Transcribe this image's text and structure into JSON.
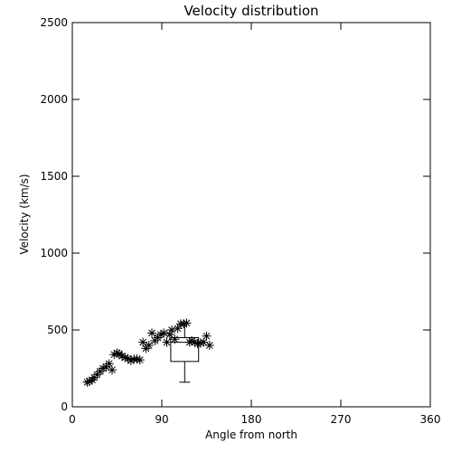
{
  "chart_data": {
    "type": "scatter",
    "title": "Velocity distribution",
    "xlabel": "Angle from north",
    "ylabel": "Velocity (km/s)",
    "xlim": [
      0,
      360
    ],
    "ylim": [
      0,
      2500
    ],
    "xticks": [
      0,
      90,
      180,
      270,
      360
    ],
    "yticks": [
      0,
      500,
      1000,
      1500,
      2000,
      2500
    ],
    "xtick_labels": [
      "0",
      "90",
      "180",
      "270",
      "360"
    ],
    "ytick_labels": [
      "0",
      "500",
      "1000",
      "1500",
      "2000",
      "2500"
    ],
    "grid": false,
    "marker": "asterisk",
    "color": "#000000",
    "points": [
      [
        15,
        160
      ],
      [
        17,
        165
      ],
      [
        20,
        175
      ],
      [
        22,
        190
      ],
      [
        25,
        210
      ],
      [
        28,
        230
      ],
      [
        31,
        250
      ],
      [
        34,
        260
      ],
      [
        37,
        280
      ],
      [
        40,
        240
      ],
      [
        42,
        340
      ],
      [
        45,
        350
      ],
      [
        47,
        345
      ],
      [
        50,
        330
      ],
      [
        53,
        320
      ],
      [
        56,
        315
      ],
      [
        59,
        300
      ],
      [
        62,
        310
      ],
      [
        65,
        310
      ],
      [
        68,
        305
      ],
      [
        71,
        420
      ],
      [
        74,
        380
      ],
      [
        77,
        400
      ],
      [
        80,
        480
      ],
      [
        83,
        430
      ],
      [
        86,
        450
      ],
      [
        89,
        470
      ],
      [
        92,
        480
      ],
      [
        95,
        420
      ],
      [
        98,
        470
      ],
      [
        100,
        500
      ],
      [
        103,
        440
      ],
      [
        106,
        510
      ],
      [
        109,
        540
      ],
      [
        112,
        540
      ],
      [
        115,
        545
      ],
      [
        118,
        420
      ],
      [
        120,
        430
      ],
      [
        123,
        420
      ],
      [
        126,
        410
      ],
      [
        129,
        415
      ],
      [
        132,
        420
      ],
      [
        135,
        460
      ],
      [
        138,
        400
      ]
    ],
    "boxplot": {
      "x": 113,
      "width": 28,
      "whisker_low": 160,
      "q1": 295,
      "median": 420,
      "q3": 450,
      "whisker_high": 540
    }
  }
}
